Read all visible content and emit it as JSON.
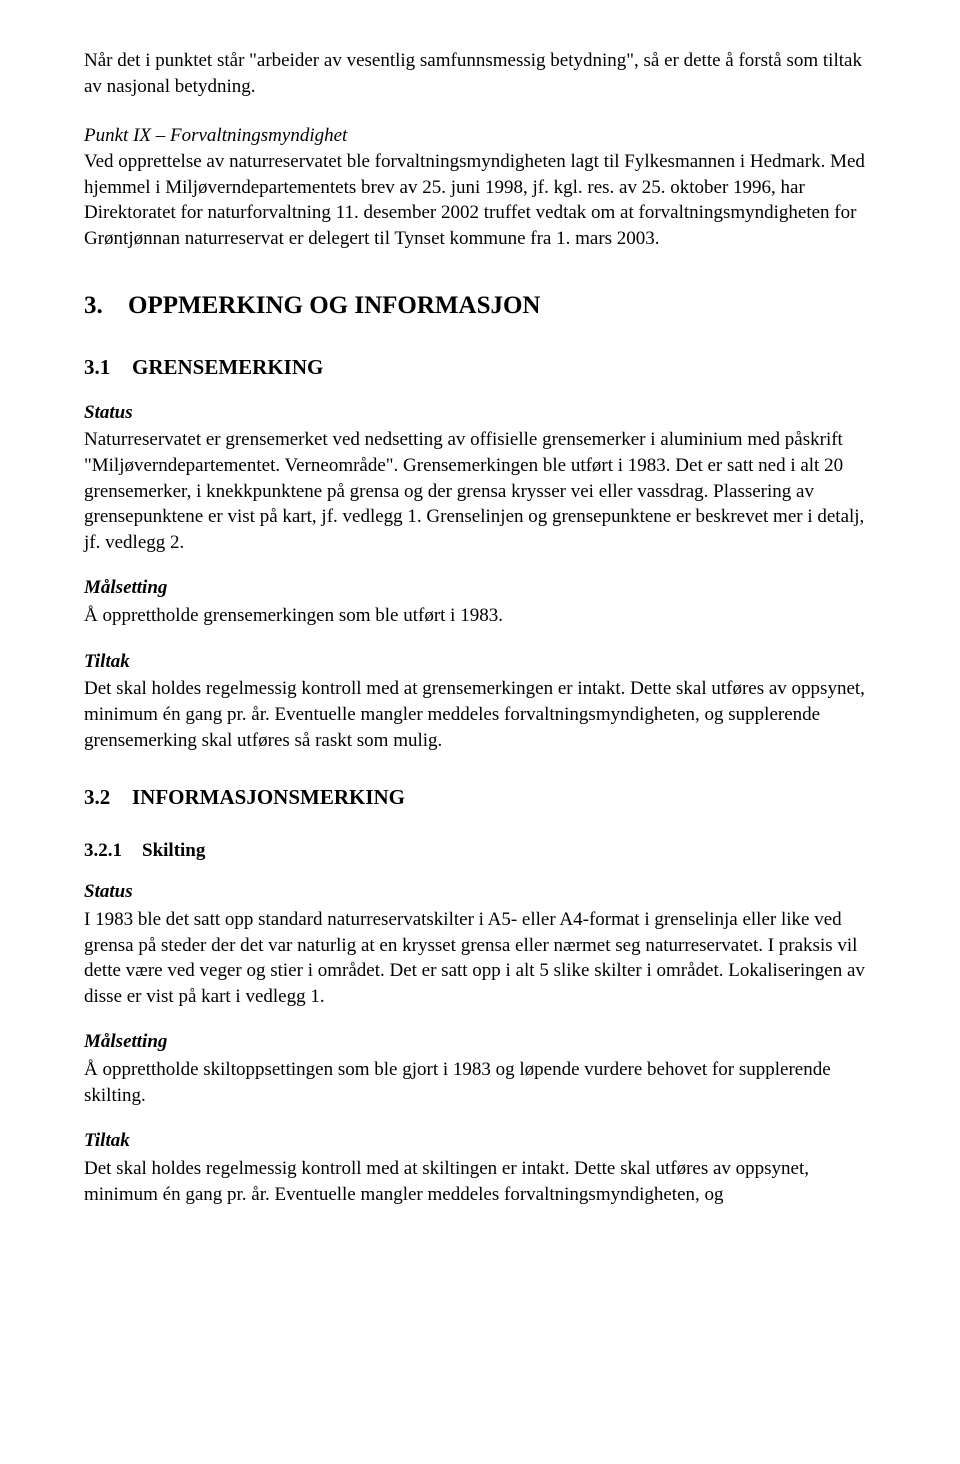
{
  "intro": {
    "p1": "Når det i punktet står \"arbeider av vesentlig samfunnsmessig betydning\", så er dette å forstå som tiltak av nasjonal betydning.",
    "p2_title": "Punkt IX – Forvaltningsmyndighet",
    "p2_body": "Ved opprettelse av naturreservatet ble forvaltningsmyndigheten lagt til Fylkesmannen i Hedmark. Med hjemmel i Miljøverndepartementets brev av 25. juni 1998, jf. kgl. res. av 25. oktober 1996, har Direktoratet for naturforvaltning 11. desember 2002 truffet vedtak om at forvaltningsmyndigheten for Grøntjønnan naturreservat er delegert til Tynset kommune fra 1. mars 2003."
  },
  "sec3": {
    "num": "3.",
    "title": "OPPMERKING OG INFORMASJON"
  },
  "sec31": {
    "num": "3.1",
    "title": "GRENSEMERKING",
    "status_label": "Status",
    "status_body": "Naturreservatet er grensemerket ved nedsetting av offisielle grensemerker i aluminium med påskrift \"Miljøverndepartementet. Verneområde\". Grensemerkingen ble utført i 1983. Det er satt ned i alt 20 grensemerker, i knekkpunktene på grensa og der grensa krysser vei eller vassdrag. Plassering av grensepunktene er vist på kart, jf. vedlegg 1. Grenselinjen og grensepunktene er beskrevet mer i detalj, jf. vedlegg 2.",
    "maal_label": "Målsetting",
    "maal_body": "Å opprettholde grensemerkingen som ble utført i 1983.",
    "tiltak_label": "Tiltak",
    "tiltak_body": "Det skal holdes regelmessig kontroll med at grensemerkingen er intakt. Dette skal utføres av oppsynet, minimum én gang pr. år. Eventuelle mangler meddeles forvaltningsmyndigheten, og supplerende grensemerking skal utføres så raskt som mulig."
  },
  "sec32": {
    "num": "3.2",
    "title": "INFORMASJONSMERKING"
  },
  "sec321": {
    "num": "3.2.1",
    "title": "Skilting",
    "status_label": "Status",
    "status_body": "I 1983 ble det satt opp standard naturreservatskilter i A5- eller A4-format i grenselinja eller like ved grensa på steder der det var naturlig at en krysset grensa eller nærmet seg naturreservatet. I praksis vil dette være ved veger og stier i området. Det er satt opp i alt 5 slike skilter i området. Lokaliseringen av disse er vist på kart i vedlegg 1.",
    "maal_label": "Målsetting",
    "maal_body": "Å opprettholde skiltoppsettingen som ble gjort i 1983 og løpende vurdere behovet for supplerende skilting.",
    "tiltak_label": "Tiltak",
    "tiltak_body": "Det skal holdes regelmessig kontroll med at skiltingen er intakt. Dette skal utføres av oppsynet, minimum én gang pr. år. Eventuelle mangler meddeles forvaltningsmyndigheten, og"
  }
}
